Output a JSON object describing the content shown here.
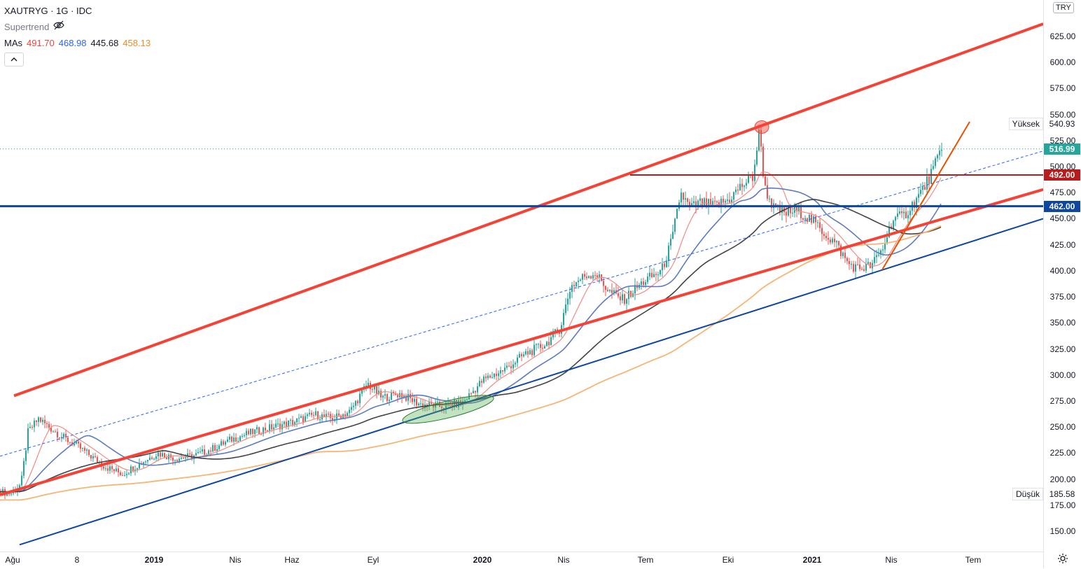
{
  "header": {
    "symbol": "XAUTRYG · 1G · IDC",
    "indicator": "Supertrend",
    "mas_label": "MAs",
    "mas_values": [
      {
        "value": "491.70",
        "color": "#f44336"
      },
      {
        "value": "468.98",
        "color": "#2962ff"
      },
      {
        "value": "445.68",
        "color": "#131722"
      },
      {
        "value": "458.13",
        "color": "#ef8b29"
      }
    ],
    "collapse_icon": "chevron-up-icon",
    "hide_icon": "eye-off-icon"
  },
  "currency": "TRY",
  "price_axis": {
    "ticks": [
      "625.00",
      "600.00",
      "575.00",
      "550.00",
      "525.00",
      "500.00",
      "475.00",
      "450.00",
      "425.00",
      "400.00",
      "375.00",
      "350.00",
      "325.00",
      "300.00",
      "275.00",
      "250.00",
      "225.00",
      "200.00",
      "175.00",
      "150.00"
    ],
    "tick_values": [
      625,
      600,
      575,
      550,
      525,
      500,
      475,
      450,
      425,
      400,
      375,
      350,
      325,
      300,
      275,
      250,
      225,
      200,
      175,
      150
    ],
    "high_label": "Yüksek",
    "high_value": "540.93",
    "low_label": "Düşük",
    "low_value": "185.58",
    "last_price": "516.99",
    "last_price_color": "#26a69a",
    "level_red": "492.00",
    "level_red_color": "#b71c1c",
    "level_blue": "462.00",
    "level_blue_color": "#0d47a1"
  },
  "time_axis": {
    "labels": [
      "Ağu",
      "8",
      "2019",
      "Nis",
      "Haz",
      "Eyl",
      "2020",
      "Nis",
      "Tem",
      "Eki",
      "2021",
      "Nis",
      "Tem"
    ],
    "bold": [
      false,
      false,
      true,
      false,
      false,
      false,
      true,
      false,
      false,
      false,
      true,
      false,
      false
    ]
  },
  "settings_icon": "gear-icon",
  "colors": {
    "channel_red": "#f44336",
    "support_blue": "#0d47a1",
    "ma_red": "#f28b82",
    "ma_blue": "#5c7bc0",
    "ma_black": "#424242",
    "ma_orange": "#f5b574",
    "trend_orange": "#e65100"
  }
}
